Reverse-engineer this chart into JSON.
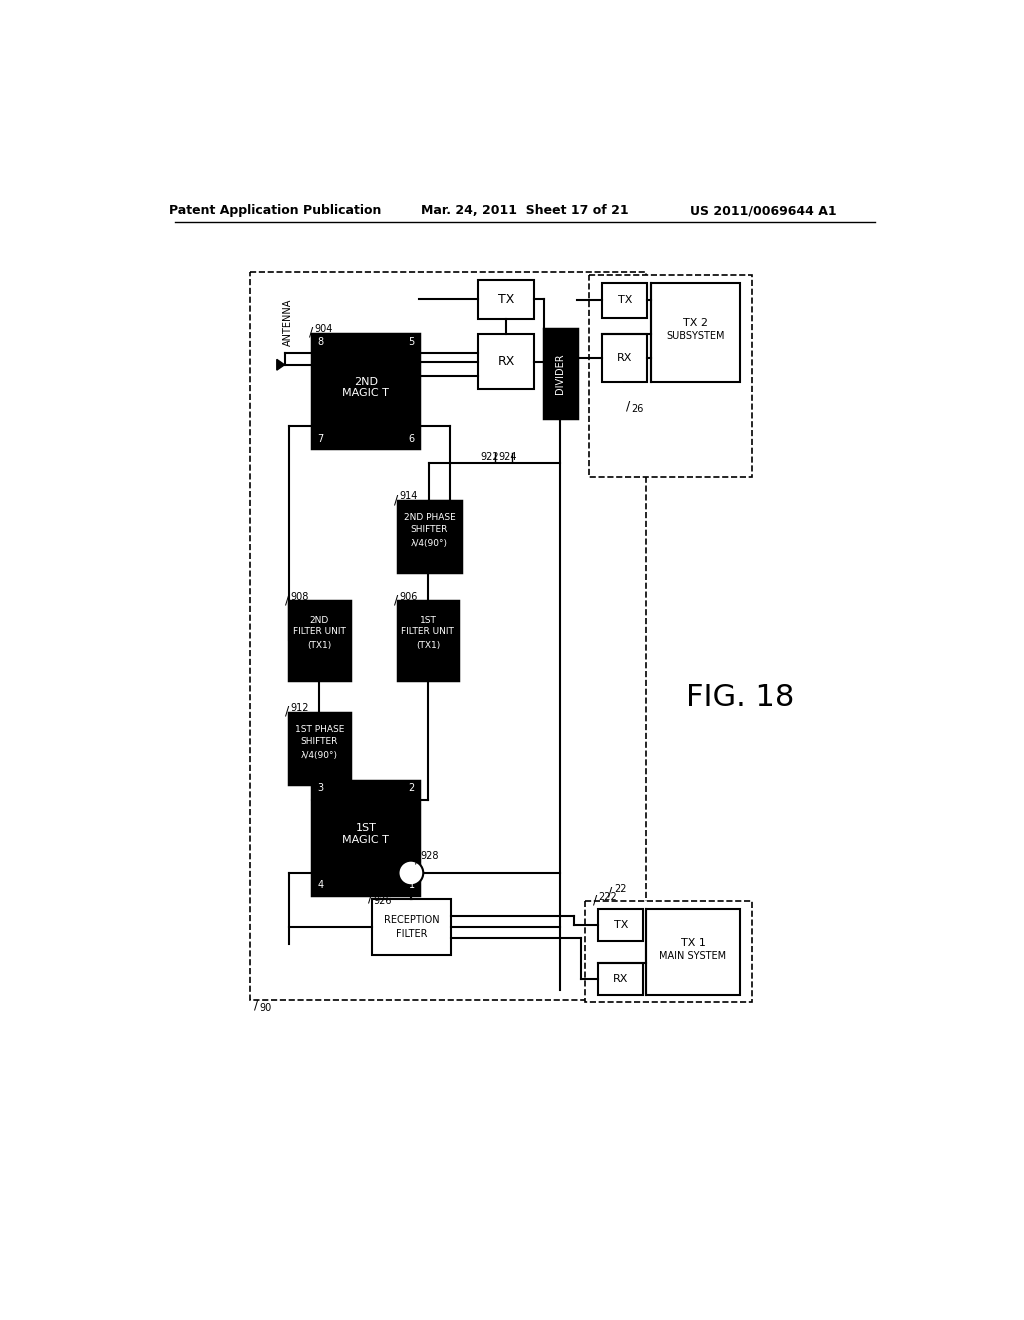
{
  "title_left": "Patent Application Publication",
  "title_center": "Mar. 24, 2011  Sheet 17 of 21",
  "title_right": "US 2011/0069644 A1",
  "fig_label": "FIG. 18",
  "background": "#ffffff",
  "line_color": "#000000"
}
